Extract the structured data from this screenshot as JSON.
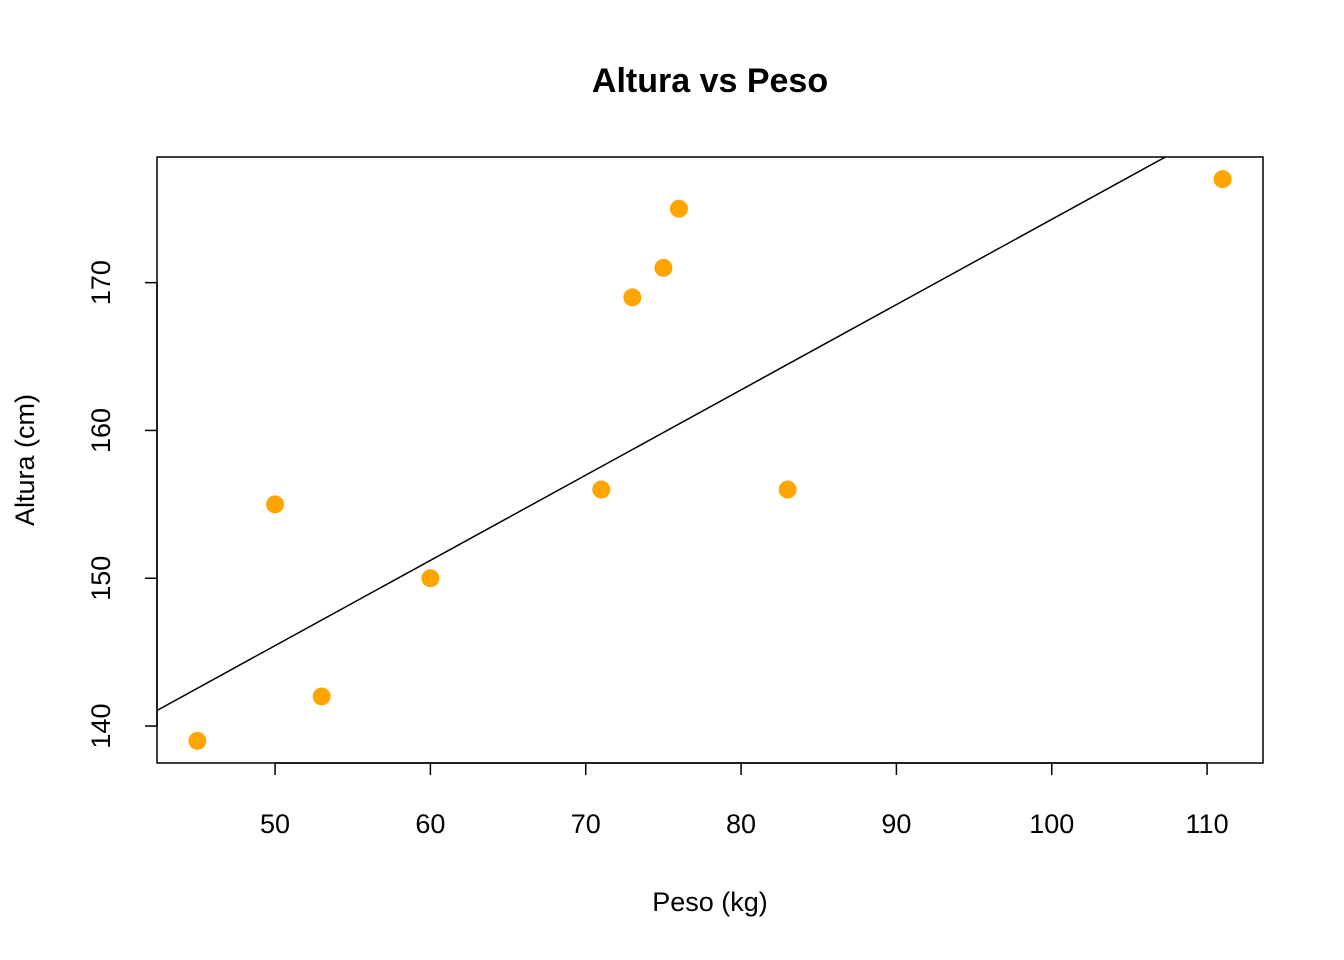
{
  "chart_data": {
    "type": "scatter",
    "title": "Altura vs Peso",
    "xlabel": "Peso (kg)",
    "ylabel": "Altura (cm)",
    "xlim": [
      42.4,
      113.6
    ],
    "ylim": [
      137.5,
      178.5
    ],
    "xticks": [
      "50",
      "60",
      "70",
      "80",
      "90",
      "100",
      "110"
    ],
    "yticks": [
      "140",
      "150",
      "160",
      "170"
    ],
    "grid": false,
    "point_color": "#FFA500",
    "line_color": "#000000",
    "points": [
      {
        "x": 45,
        "y": 139
      },
      {
        "x": 50,
        "y": 155
      },
      {
        "x": 53,
        "y": 142
      },
      {
        "x": 60,
        "y": 150
      },
      {
        "x": 71,
        "y": 156
      },
      {
        "x": 73,
        "y": 169
      },
      {
        "x": 75,
        "y": 171
      },
      {
        "x": 76,
        "y": 175
      },
      {
        "x": 83,
        "y": 156
      },
      {
        "x": 111,
        "y": 177
      }
    ],
    "regression_line": {
      "intercept": 116.6,
      "slope": 0.5768
    }
  }
}
